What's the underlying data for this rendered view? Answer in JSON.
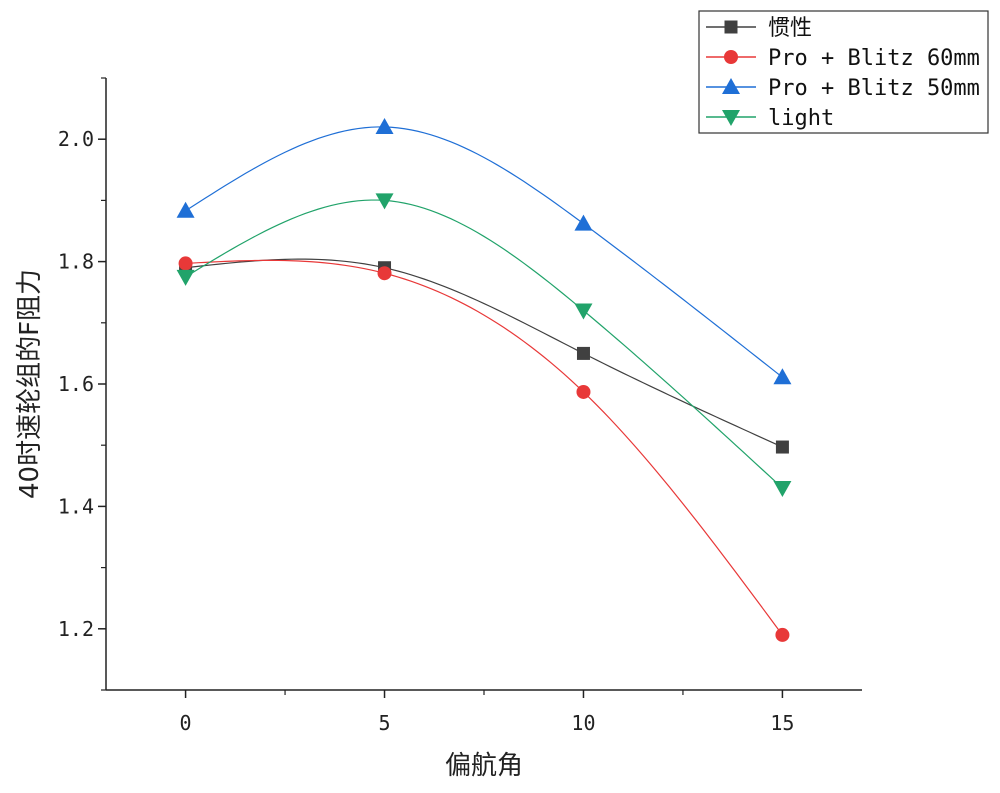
{
  "chart_data": {
    "type": "line",
    "xlabel": "偏航角",
    "ylabel": "40时速轮组的F阻力",
    "x": [
      0,
      5,
      10,
      15
    ],
    "xlim": [
      -2,
      17
    ],
    "ylim": [
      1.1,
      2.1
    ],
    "xticks": [
      0,
      5,
      10,
      15
    ],
    "xtick_labels": [
      "0",
      "5",
      "10",
      "15"
    ],
    "yticks": [
      1.2,
      1.4,
      1.6,
      1.8,
      2.0
    ],
    "ytick_labels": [
      "1.2",
      "1.4",
      "1.6",
      "1.8",
      "2.0"
    ],
    "grid": false,
    "legend_position": "top-right",
    "series": [
      {
        "name": "惯性",
        "values": [
          1.79,
          1.79,
          1.65,
          1.497
        ],
        "color": "#404040",
        "marker": "square"
      },
      {
        "name": "Pro + Blitz 60mm",
        "values": [
          1.797,
          1.781,
          1.587,
          1.19
        ],
        "color": "#e83838",
        "marker": "circle"
      },
      {
        "name": "Pro + Blitz 50mm",
        "values": [
          1.883,
          2.02,
          1.862,
          1.611
        ],
        "color": "#1f6fd6",
        "marker": "triangle-up"
      },
      {
        "name": "light",
        "values": [
          1.775,
          1.9,
          1.72,
          1.43
        ],
        "color": "#21a36a",
        "marker": "triangle-down"
      }
    ]
  }
}
